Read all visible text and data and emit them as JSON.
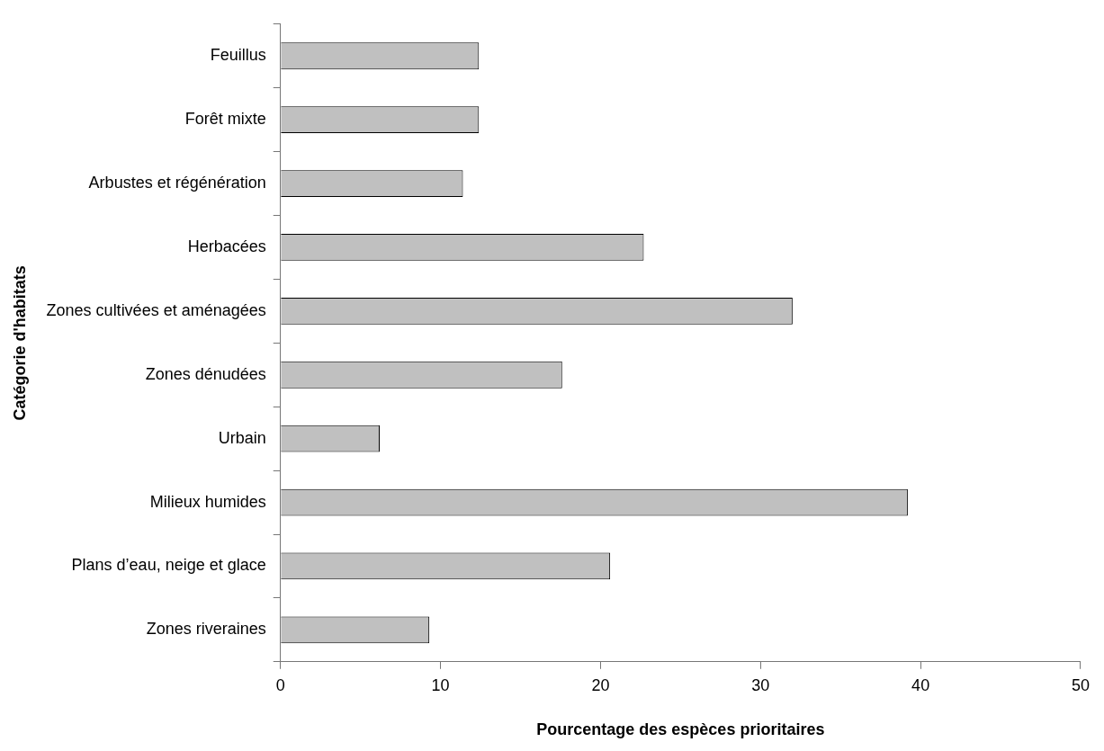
{
  "chart_data": {
    "type": "bar",
    "orientation": "horizontal",
    "xlabel": "Pourcentage des espèces prioritaires",
    "ylabel": "Catégorie d'habitats",
    "categories": [
      "Feuillus",
      "Forêt mixte",
      "Arbustes et régénération",
      "Herbacées",
      "Zones cultivées et aménagées",
      "Zones dénudées",
      "Urbain",
      "Milieux humides",
      "Plans d’eau, neige et glace",
      "Zones riveraines"
    ],
    "values": [
      12.4,
      12.4,
      11.4,
      22.7,
      32.0,
      17.6,
      6.2,
      39.2,
      20.6,
      9.3
    ],
    "color": "#c0c0c0",
    "xlim": [
      0,
      50
    ],
    "xticks": [
      0,
      10,
      20,
      30,
      40,
      50
    ],
    "grid": false,
    "legend": false
  }
}
